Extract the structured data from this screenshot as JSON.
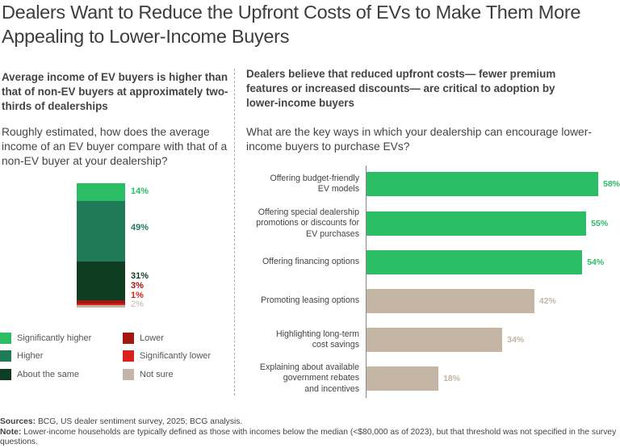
{
  "title": "Dealers Want to Reduce the Upfront Costs of EVs to Make Them More Appealing to Lower-Income Buyers",
  "left": {
    "subhead": "Average income of EV buyers is higher than that of non-EV buyers at approximately two-thirds of dealerships",
    "question": "Roughly estimated, how does the average income of an EV buyer compare with that of a non-EV buyer at your dealership?"
  },
  "right": {
    "subhead": "Dealers believe that reduced upfront costs— fewer premium features or increased discounts— are critical to adoption by lower-income buyers",
    "question": "What are the key ways in which your dealership can encourage lower-income buyers to purchase EVs?"
  },
  "footer": {
    "sources_label": "Sources:",
    "sources_text": " BCG, US dealer sentiment survey, 2025; BCG analysis.",
    "note_label": "Note:",
    "note_text": " Lower-income households are typically defined as those with incomes below the median (<$80,000 as of 2023), but that threshold was not specified in the survey questions."
  },
  "chart_data": [
    {
      "type": "bar",
      "stacked": true,
      "title": "Roughly estimated, how does the average income of an EV buyer compare with that of a non-EV buyer at your dealership?",
      "unit": "%",
      "legend_position": "bottom",
      "series": [
        {
          "name": "Significantly higher",
          "value": 14,
          "label": "14%",
          "color": "#2bbd63",
          "label_color": "#2bbd63"
        },
        {
          "name": "Higher",
          "value": 49,
          "label": "49%",
          "color": "#1e7a57",
          "label_color": "#1e7a57"
        },
        {
          "name": "About the same",
          "value": 31,
          "label": "31%",
          "color": "#0f3d22",
          "label_color": "#0f3d22"
        },
        {
          "name": "Lower",
          "value": 3,
          "label": "3%",
          "color": "#a0180f",
          "label_color": "#a0180f"
        },
        {
          "name": "Significantly lower",
          "value": 1,
          "label": "1%",
          "color": "#d8231c",
          "label_color": "#d8231c"
        },
        {
          "name": "Not sure",
          "value": 2,
          "label": "2%",
          "color": "#c4b5a5",
          "label_color": "#c4b5a5"
        }
      ],
      "legend": [
        {
          "name": "Significantly higher",
          "color": "#2bbd63"
        },
        {
          "name": "Higher",
          "color": "#1e7a57"
        },
        {
          "name": "About the same",
          "color": "#0f3d22"
        },
        {
          "name": "Lower",
          "color": "#a0180f"
        },
        {
          "name": "Significantly lower",
          "color": "#d8231c"
        },
        {
          "name": "Not sure",
          "color": "#c4b5a5"
        }
      ]
    },
    {
      "type": "bar",
      "orientation": "horizontal",
      "title": "What are the key ways in which your dealership can encourage lower-income buyers to purchase EVs?",
      "unit": "%",
      "xlim": [
        0,
        58
      ],
      "categories": [
        "Offering budget-friendly EV models",
        "Offering special dealership promotions or discounts for EV purchases",
        "Offering financing options",
        "Promoting leasing options",
        "Highlighting long-term cost savings",
        "Explaining about available government rebates and incentives"
      ],
      "category_lines": [
        [
          "Offering budget-friendly",
          "EV models"
        ],
        [
          "Offering special dealership",
          "promotions or discounts for",
          "EV purchases"
        ],
        [
          "Offering financing options"
        ],
        [
          "Promoting leasing options"
        ],
        [
          "Highlighting long-term",
          "cost savings"
        ],
        [
          "Explaining about available",
          "government rebates",
          "and incentives"
        ]
      ],
      "values": [
        58,
        55,
        54,
        42,
        34,
        18
      ],
      "labels": [
        "58%",
        "55%",
        "54%",
        "42%",
        "34%",
        "18%"
      ],
      "colors": [
        "#2bbd63",
        "#2bbd63",
        "#2bbd63",
        "#c4b5a5",
        "#c4b5a5",
        "#c4b5a5"
      ]
    }
  ]
}
